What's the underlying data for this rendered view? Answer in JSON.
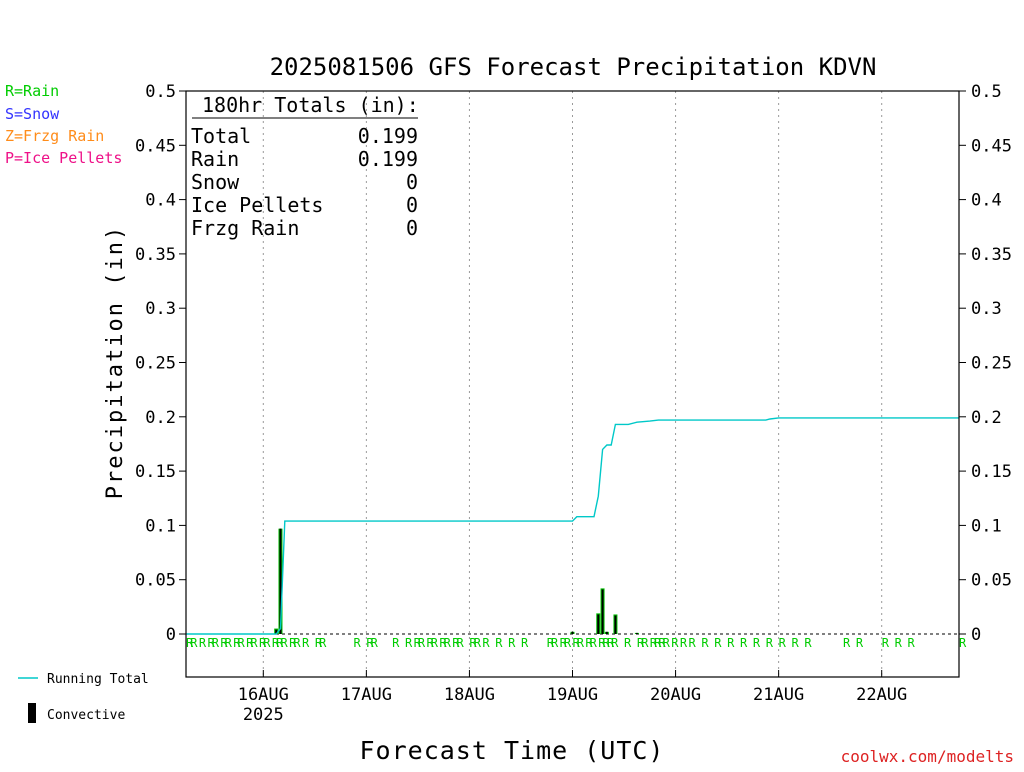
{
  "chart_data": {
    "type": "bar",
    "title": "2025081506 GFS Forecast Precipitation KDVN",
    "xlabel": "Forecast Time (UTC)",
    "ylabel": "Precipitation (in)",
    "ylim": [
      0,
      0.5
    ],
    "y_ticks": [
      0,
      0.05,
      0.1,
      0.15,
      0.2,
      0.25,
      0.3,
      0.35,
      0.4,
      0.45,
      0.5
    ],
    "y_tick_labels": [
      "0",
      "0.05",
      "0.1",
      "0.15",
      "0.2",
      "0.25",
      "0.3",
      "0.35",
      "0.4",
      "0.45",
      "0.5"
    ],
    "x_unit": "forecast hour",
    "xlim": [
      0,
      180
    ],
    "x_ticks": [
      {
        "hour": 18,
        "label": "16AUG",
        "sublabel": "2025"
      },
      {
        "hour": 42,
        "label": "17AUG"
      },
      {
        "hour": 66,
        "label": "18AUG"
      },
      {
        "hour": 90,
        "label": "19AUG"
      },
      {
        "hour": 114,
        "label": "20AUG"
      },
      {
        "hour": 138,
        "label": "21AUG"
      },
      {
        "hour": 162,
        "label": "22AUG"
      }
    ],
    "grid": true,
    "type_legend": [
      {
        "text": "R=Rain",
        "color": "#00cc00"
      },
      {
        "text": "S=Snow",
        "color": "#3333ff"
      },
      {
        "text": "Z=Frzg Rain",
        "color": "#ff8c1a"
      },
      {
        "text": "P=Ice Pellets",
        "color": "#ee1188"
      }
    ],
    "series_legend": [
      {
        "name": "Running Total",
        "kind": "line",
        "color": "#00c8c8"
      },
      {
        "name": "Convective",
        "kind": "bar",
        "color": "#000000"
      }
    ],
    "totals_box": {
      "heading": "180hr Totals (in):",
      "rows": [
        {
          "label": "Total",
          "value": "0.199"
        },
        {
          "label": "Rain",
          "value": "0.199"
        },
        {
          "label": "Snow",
          "value": "0"
        },
        {
          "label": "Ice Pellets",
          "value": "0"
        },
        {
          "label": "Frzg Rain",
          "value": "0"
        }
      ]
    },
    "precip_bars": [
      {
        "x": 21,
        "total": 0.005,
        "convective": 0.004
      },
      {
        "x": 22,
        "total": 0.097,
        "convective": 0.097
      },
      {
        "x": 90,
        "total": 0.002,
        "convective": 0.002
      },
      {
        "x": 96,
        "total": 0.019,
        "convective": 0.018
      },
      {
        "x": 97,
        "total": 0.042,
        "convective": 0.041
      },
      {
        "x": 98,
        "total": 0.002,
        "convective": 0.002
      },
      {
        "x": 100,
        "total": 0.018,
        "convective": 0.017
      },
      {
        "x": 105,
        "total": 0.001,
        "convective": 0.001
      }
    ],
    "running_total": [
      [
        0,
        0
      ],
      [
        21,
        0
      ],
      [
        22,
        0.005
      ],
      [
        23,
        0.104
      ],
      [
        90,
        0.104
      ],
      [
        91,
        0.108
      ],
      [
        95,
        0.108
      ],
      [
        96,
        0.127
      ],
      [
        97,
        0.17
      ],
      [
        98,
        0.174
      ],
      [
        99,
        0.174
      ],
      [
        100,
        0.193
      ],
      [
        103,
        0.193
      ],
      [
        105,
        0.195
      ],
      [
        108,
        0.196
      ],
      [
        110,
        0.197
      ],
      [
        135,
        0.197
      ],
      [
        136,
        0.198
      ],
      [
        138,
        0.199
      ],
      [
        180,
        0.199
      ]
    ],
    "precip_type_marks": {
      "letter": "R",
      "color": "#00cc00",
      "hours": [
        0,
        1,
        3,
        5,
        6,
        8,
        9,
        11,
        12,
        14,
        15,
        17,
        18,
        20,
        21,
        22,
        24,
        25,
        27,
        30,
        31,
        39,
        42,
        43,
        48,
        51,
        53,
        54,
        56,
        57,
        59,
        60,
        62,
        63,
        66,
        67,
        69,
        72,
        75,
        78,
        84,
        85,
        87,
        88,
        90,
        91,
        93,
        94,
        96,
        97,
        98,
        99,
        102,
        105,
        106,
        108,
        109,
        110,
        111,
        113,
        115,
        117,
        120,
        123,
        126,
        129,
        132,
        135,
        138,
        141,
        144,
        153,
        156,
        162,
        165,
        168,
        180
      ]
    },
    "footer_credit": "coolwx.com/modelts"
  }
}
